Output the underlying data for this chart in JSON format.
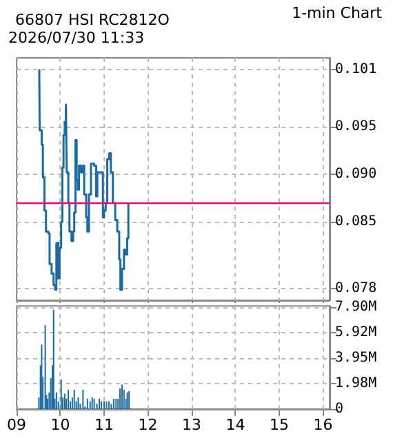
{
  "chart_data": [
    {
      "type": "step",
      "title": "66807 HSI RC2812O",
      "annotations": [
        "1-min Chart",
        "2026/07/30 11:33"
      ],
      "xlim": [
        9,
        16.15
      ],
      "xticks": [
        9,
        10,
        11,
        12,
        13,
        14,
        15,
        16
      ],
      "ylim": [
        0.0768,
        0.1022
      ],
      "yticks": [
        0.101,
        0.095,
        {
          "value": 0.09,
          "label": "0.090"
        },
        0.085,
        0.078
      ],
      "grid": true,
      "tick_labels": "y",
      "marker": "none",
      "ref_lines": [
        {
          "axis": "y",
          "value": 0.087,
          "color": "#ff0080"
        }
      ],
      "series": [
        {
          "color": "#1a6aa6",
          "x": [
            9.519,
            9.528,
            9.574,
            9.601,
            9.637,
            9.673,
            9.728,
            9.755,
            9.801,
            9.846,
            9.882,
            9.91,
            9.955,
            9.982,
            10.019,
            10.046,
            10.073,
            10.1,
            10.128,
            10.146,
            10.182,
            10.209,
            10.255,
            10.291,
            10.318,
            10.346,
            10.373,
            10.4,
            10.427,
            10.473,
            10.518,
            10.545,
            10.591,
            10.618,
            10.654,
            10.7,
            10.772,
            10.818,
            10.845,
            10.927,
            10.972,
            10.999,
            11.036,
            11.072,
            11.118,
            11.154,
            11.2,
            11.254,
            11.3,
            11.345,
            11.372,
            11.408,
            11.454,
            11.499,
            11.527,
            11.554
          ],
          "values": [
            0.101,
            0.0946,
            0.0931,
            0.0897,
            0.0862,
            0.084,
            0.0838,
            0.0806,
            0.0796,
            0.0784,
            0.0779,
            0.0828,
            0.0791,
            0.0823,
            0.085,
            0.0907,
            0.0941,
            0.0955,
            0.0973,
            0.0902,
            0.087,
            0.084,
            0.083,
            0.084,
            0.086,
            0.0936,
            0.0894,
            0.0884,
            0.0909,
            0.0902,
            0.0909,
            0.0879,
            0.0855,
            0.084,
            0.0879,
            0.0911,
            0.0909,
            0.0877,
            0.0902,
            0.0902,
            0.0855,
            0.0862,
            0.087,
            0.0916,
            0.0922,
            0.0902,
            0.087,
            0.0852,
            0.084,
            0.0811,
            0.0779,
            0.0801,
            0.0821,
            0.0816,
            0.0833,
            0.087
          ]
        }
      ]
    },
    {
      "type": "bar",
      "xlim": [
        9,
        16.15
      ],
      "xticks": [
        {
          "value": 9,
          "label": "09"
        },
        10,
        11,
        12,
        13,
        14,
        15,
        16
      ],
      "ylim": [
        0,
        8
      ],
      "yticks": [
        0,
        {
          "value": 1.98,
          "label": "1.98M"
        },
        {
          "value": 3.95,
          "label": "3.95M"
        },
        {
          "value": 5.92,
          "label": "5.92M"
        },
        {
          "value": 7.9,
          "label": "7.90M"
        }
      ],
      "grid": true,
      "series": [
        {
          "color": "#1a6aa6",
          "x": [
            9.51,
            9.546,
            9.574,
            9.601,
            9.655,
            9.683,
            9.71,
            9.746,
            9.783,
            9.819,
            9.846,
            9.873,
            9.91,
            9.955,
            10.019,
            10.055,
            10.1,
            10.137,
            10.182,
            10.228,
            10.273,
            10.318,
            10.364,
            10.409,
            10.455,
            10.518,
            10.564,
            10.618,
            10.682,
            10.727,
            10.773,
            10.836,
            10.891,
            10.936,
            11.0,
            11.054,
            11.109,
            11.163,
            11.218,
            11.272,
            11.318,
            11.363,
            11.409,
            11.454,
            11.499,
            11.53,
            11.57
          ],
          "values": [
            0.9,
            3.4,
            5.0,
            2.5,
            6.5,
            1.1,
            0.8,
            1.3,
            2.4,
            3.4,
            7.7,
            0.8,
            1.3,
            0.6,
            2.3,
            0.9,
            1.2,
            0.8,
            1.5,
            0.6,
            0.9,
            1.5,
            0.6,
            0.9,
            0.4,
            1.5,
            0.2,
            0.8,
            0.6,
            0.9,
            0.8,
            0.4,
            0.8,
            0.6,
            0.6,
            0.6,
            0.6,
            0.4,
            0.8,
            0.8,
            0.8,
            1.6,
            1.9,
            1.5,
            0.8,
            1.3,
            1.4
          ]
        }
      ]
    }
  ]
}
